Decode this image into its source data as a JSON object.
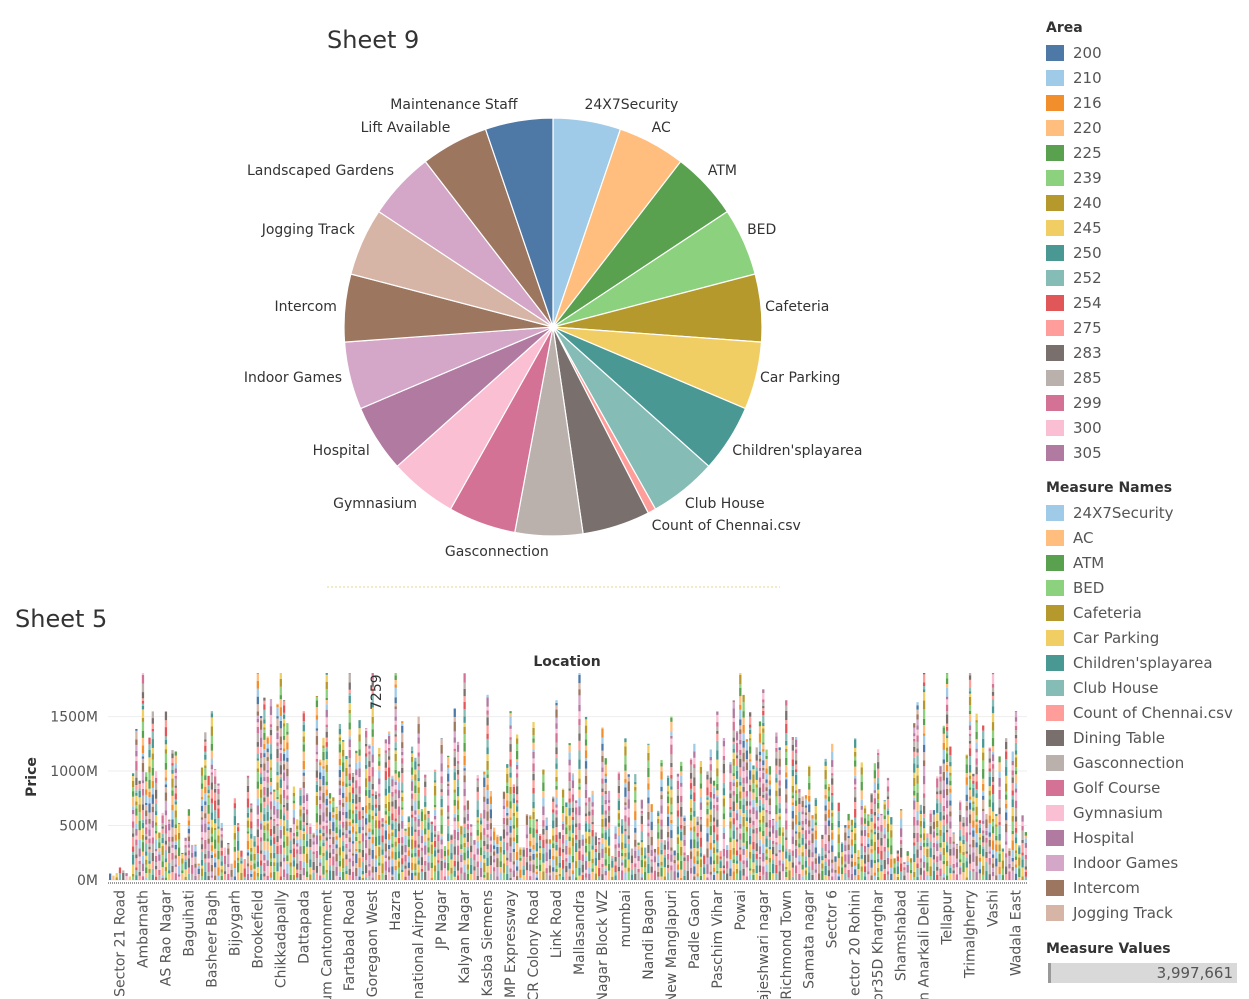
{
  "sheet9": {
    "title": "Sheet 9"
  },
  "sheet5": {
    "title": "Sheet 5",
    "annotation": "7259"
  },
  "chart_data": [
    {
      "type": "pie",
      "title": "Sheet 9",
      "slices": [
        {
          "label": "24X7Security",
          "value": 1,
          "color": "#a0cbe8"
        },
        {
          "label": "AC",
          "value": 1,
          "color": "#ffbe7d"
        },
        {
          "label": "ATM",
          "value": 1,
          "color": "#59a14f"
        },
        {
          "label": "BED",
          "value": 1,
          "color": "#8cd17d"
        },
        {
          "label": "Cafeteria",
          "value": 1,
          "color": "#b6992d"
        },
        {
          "label": "Car Parking",
          "value": 1,
          "color": "#f1ce63"
        },
        {
          "label": "Children'splayarea",
          "value": 1,
          "color": "#499894"
        },
        {
          "label": "Club House",
          "value": 1,
          "color": "#86bcb6"
        },
        {
          "label": "Count of Chennai.csv",
          "value": 0.12,
          "color": "#ff9d9a"
        },
        {
          "label": "",
          "value": 1,
          "color": "#79706e"
        },
        {
          "label": "Gasconnection",
          "value": 1,
          "color": "#bab0ac"
        },
        {
          "label": "",
          "value": 1,
          "color": "#d37295"
        },
        {
          "label": "Gymnasium",
          "value": 1,
          "color": "#fabfd2"
        },
        {
          "label": "Hospital",
          "value": 1,
          "color": "#b07aa1"
        },
        {
          "label": "Indoor Games",
          "value": 1,
          "color": "#d4a6c8"
        },
        {
          "label": "Intercom",
          "value": 1,
          "color": "#9d7660"
        },
        {
          "label": "Jogging Track",
          "value": 1,
          "color": "#d7b5a6"
        },
        {
          "label": "Landscaped Gardens",
          "value": 1,
          "color": "#d4a6c8"
        },
        {
          "label": "Lift Available",
          "value": 1,
          "color": "#9d7660"
        },
        {
          "label": "Maintenance Staff",
          "value": 1,
          "color": "#4e79a7"
        }
      ]
    },
    {
      "type": "bar",
      "title": "Sheet 5",
      "xlabel": "Location",
      "ylabel": "Price",
      "yticks": [
        "0M",
        "500M",
        "1000M",
        "1500M"
      ],
      "ylim": [
        0,
        1900
      ],
      "categories": [
        "Sector 21 Road",
        "Ambarnath",
        "AS Rao Nagar",
        "Baguihati",
        "Basheer Bagh",
        "Bijoygarh",
        "Brookefield",
        "Chikkadapally",
        "Dattapada",
        "um Cantonment",
        "Fartabad Road",
        "Goregaon West",
        "Hazra",
        "national Airport",
        "JP Nagar",
        "Kalyan Nagar",
        "Kasba Siemens",
        "MP Expressway",
        "CR Colony Road",
        "Link Road",
        "Mallasandra",
        "Nagar Block WZ",
        "mumbai",
        "Nandi Bagan",
        "New Manglapuri",
        "Padle Gaon",
        "Paschim Vihar",
        "Powai",
        "ajeshwari nagar",
        "Richmond Town",
        "Samata nagar",
        "Sector 6",
        "ector 20 Rohini",
        "or35D Kharghar",
        "Shamshabad",
        "n Anarkali Delhi",
        "Tellapur",
        "Trimalgherry",
        "Vashi",
        "Wadala East"
      ],
      "values": [
        120,
        1900,
        1550,
        650,
        1550,
        750,
        1900,
        1900,
        1550,
        1900,
        1900,
        1900,
        1900,
        1500,
        1300,
        1900,
        1700,
        1550,
        1450,
        1650,
        1900,
        1400,
        1300,
        1250,
        1500,
        1250,
        1550,
        1900,
        1750,
        1650,
        1050,
        1250,
        1300,
        1200,
        650,
        1900,
        1900,
        1900,
        1900,
        1550
      ]
    }
  ],
  "legend_area": {
    "title": "Area",
    "items": [
      {
        "label": "200",
        "color": "#4e79a7"
      },
      {
        "label": "210",
        "color": "#a0cbe8"
      },
      {
        "label": "216",
        "color": "#f28e2b"
      },
      {
        "label": "220",
        "color": "#ffbe7d"
      },
      {
        "label": "225",
        "color": "#59a14f"
      },
      {
        "label": "239",
        "color": "#8cd17d"
      },
      {
        "label": "240",
        "color": "#b6992d"
      },
      {
        "label": "245",
        "color": "#f1ce63"
      },
      {
        "label": "250",
        "color": "#499894"
      },
      {
        "label": "252",
        "color": "#86bcb6"
      },
      {
        "label": "254",
        "color": "#e15759"
      },
      {
        "label": "275",
        "color": "#ff9d9a"
      },
      {
        "label": "283",
        "color": "#79706e"
      },
      {
        "label": "285",
        "color": "#bab0ac"
      },
      {
        "label": "299",
        "color": "#d37295"
      },
      {
        "label": "300",
        "color": "#fabfd2"
      },
      {
        "label": "305",
        "color": "#b07aa1"
      }
    ]
  },
  "legend_measures": {
    "title": "Measure Names",
    "items": [
      {
        "label": "24X7Security",
        "color": "#a0cbe8"
      },
      {
        "label": "AC",
        "color": "#ffbe7d"
      },
      {
        "label": "ATM",
        "color": "#59a14f"
      },
      {
        "label": "BED",
        "color": "#8cd17d"
      },
      {
        "label": "Cafeteria",
        "color": "#b6992d"
      },
      {
        "label": "Car Parking",
        "color": "#f1ce63"
      },
      {
        "label": "Children'splayarea",
        "color": "#499894"
      },
      {
        "label": "Club House",
        "color": "#86bcb6"
      },
      {
        "label": "Count of Chennai.csv",
        "color": "#ff9d9a"
      },
      {
        "label": "Dining Table",
        "color": "#79706e"
      },
      {
        "label": "Gasconnection",
        "color": "#bab0ac"
      },
      {
        "label": "Golf Course",
        "color": "#d37295"
      },
      {
        "label": "Gymnasium",
        "color": "#fabfd2"
      },
      {
        "label": "Hospital",
        "color": "#b07aa1"
      },
      {
        "label": "Indoor Games",
        "color": "#d4a6c8"
      },
      {
        "label": "Intercom",
        "color": "#9d7660"
      },
      {
        "label": "Jogging Track",
        "color": "#d7b5a6"
      }
    ]
  },
  "measure_values": {
    "title": "Measure Values",
    "value": "3,997,661",
    "fill": 1.0
  }
}
